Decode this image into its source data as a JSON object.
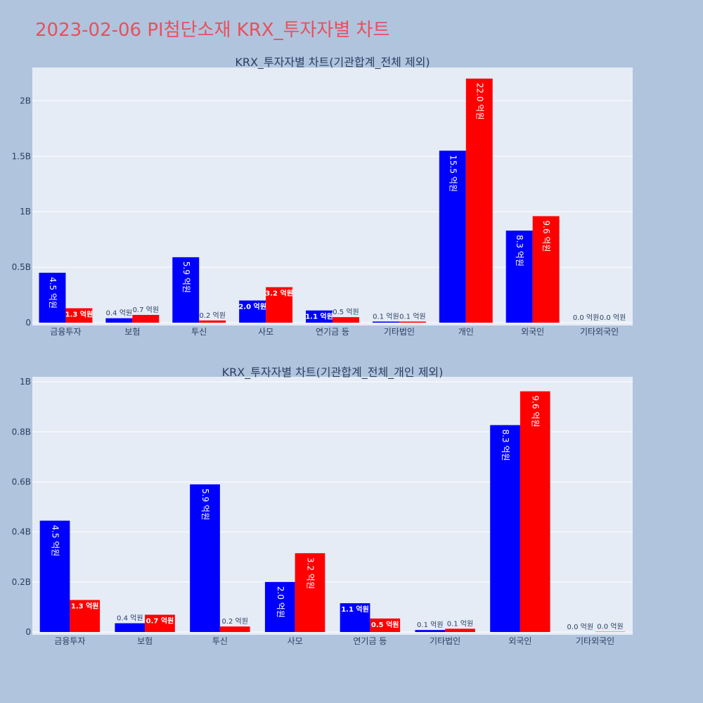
{
  "page_title": "2023-02-06 PI첨단소재 KRX_투자자별 차트",
  "colors": {
    "series_a": "#0000ff",
    "series_b": "#ff0000",
    "background": "#b0c4de",
    "plot_bg": "#e5ecf6"
  },
  "chart_data": [
    {
      "type": "bar",
      "title": "KRX_투자자별 차트(기관합계_전체 제외)",
      "categories": [
        "금융투자",
        "보험",
        "투신",
        "사모",
        "연기금 등",
        "기타법인",
        "개인",
        "외국인",
        "기타외국인"
      ],
      "series": [
        {
          "color": "#0000ff",
          "values": [
            0.45,
            0.04,
            0.59,
            0.2,
            0.11,
            0.01,
            1.55,
            0.83,
            0.0
          ]
        },
        {
          "color": "#ff0000",
          "values": [
            0.13,
            0.07,
            0.02,
            0.32,
            0.05,
            0.01,
            2.2,
            0.96,
            0.0
          ]
        }
      ],
      "data_labels": [
        [
          "4.5 억원",
          "0.4 억원",
          "5.9 억원",
          "2.0 억원",
          "1.1 억원",
          "0.1 억원",
          "15.5 억원",
          "8.3 억원",
          "0.0 억원"
        ],
        [
          "1.3 억원",
          "0.7 억원",
          "0.2 억원",
          "3.2 억원",
          "0.5 억원",
          "0.1 억원",
          "22.0 억원",
          "9.6 억원",
          "0.0 억원"
        ]
      ],
      "ylim": [
        0,
        2.3
      ],
      "yticks": [
        0,
        0.5,
        1,
        1.5,
        2
      ],
      "ytick_labels": [
        "0",
        "0.5B",
        "1B",
        "1.5B",
        "2B"
      ],
      "grid": true
    },
    {
      "type": "bar",
      "title": "KRX_투자자별 차트(기관합계_전체_개인 제외)",
      "categories": [
        "금융투자",
        "보험",
        "투신",
        "사모",
        "연기금 등",
        "기타법인",
        "외국인",
        "기타외국인"
      ],
      "series": [
        {
          "color": "#0000ff",
          "values": [
            0.445,
            0.035,
            0.59,
            0.2,
            0.115,
            0.008,
            0.827,
            0.0
          ]
        },
        {
          "color": "#ff0000",
          "values": [
            0.128,
            0.069,
            0.022,
            0.315,
            0.054,
            0.013,
            0.962,
            0.001
          ]
        }
      ],
      "data_labels": [
        [
          "4.5 억원",
          "0.4 억원",
          "5.9 억원",
          "2.0 억원",
          "1.1 억원",
          "0.1 억원",
          "8.3 억원",
          "0.0 억원"
        ],
        [
          "1.3 억원",
          "0.7 억원",
          "0.2 억원",
          "3.2 억원",
          "0.5 억원",
          "0.1 억원",
          "9.6 억원",
          "0.0 억원"
        ]
      ],
      "ylim": [
        0,
        1.02
      ],
      "yticks": [
        0,
        0.2,
        0.4,
        0.6,
        0.8,
        1
      ],
      "ytick_labels": [
        "0",
        "0.2B",
        "0.4B",
        "0.6B",
        "0.8B",
        "1B"
      ],
      "grid": true
    }
  ]
}
